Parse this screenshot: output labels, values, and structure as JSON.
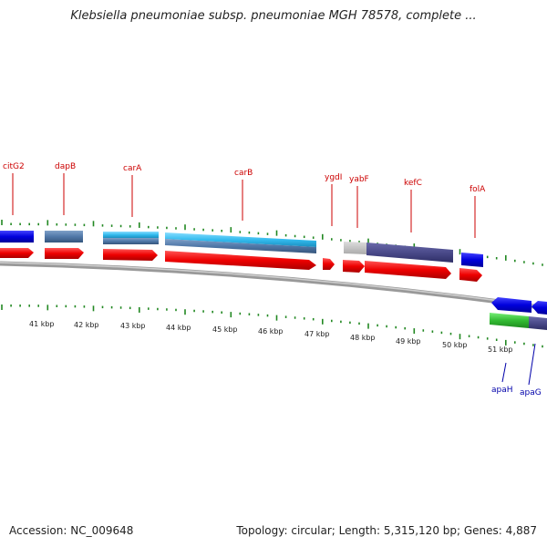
{
  "title": "Klebsiella pneumoniae subsp. pneumoniae MGH 78578, complete ...",
  "footer": {
    "accession": "Accession: NC_009648",
    "summary": "Topology: circular; Length: 5,315,120 bp; Genes: 4,887"
  },
  "top_genes": [
    {
      "name": "citG2"
    },
    {
      "name": "dapB"
    },
    {
      "name": "carA"
    },
    {
      "name": "carB"
    },
    {
      "name": "ygdI"
    },
    {
      "name": "yabF"
    },
    {
      "name": "kefC"
    },
    {
      "name": "folA"
    }
  ],
  "bottom_genes": [
    {
      "name": "apaH"
    },
    {
      "name": "apaG"
    }
  ],
  "kbp_labels": [
    "41 kbp",
    "42 kbp",
    "43 kbp",
    "44 kbp",
    "45 kbp",
    "46 kbp",
    "47 kbp",
    "48 kbp",
    "49 kbp",
    "50 kbp",
    "51 kbp"
  ],
  "colors": {
    "cds_red": "#ee0000",
    "gene_blue": "#0000dd",
    "steelblue": "#5078a8",
    "cyan": "#33bbee",
    "slate": "#4a4a8a",
    "gray": "#bbbbbb",
    "green": "#33bb33",
    "tick_green": "#228822",
    "top_label": "#cc0000",
    "bottom_label": "#0000aa"
  }
}
